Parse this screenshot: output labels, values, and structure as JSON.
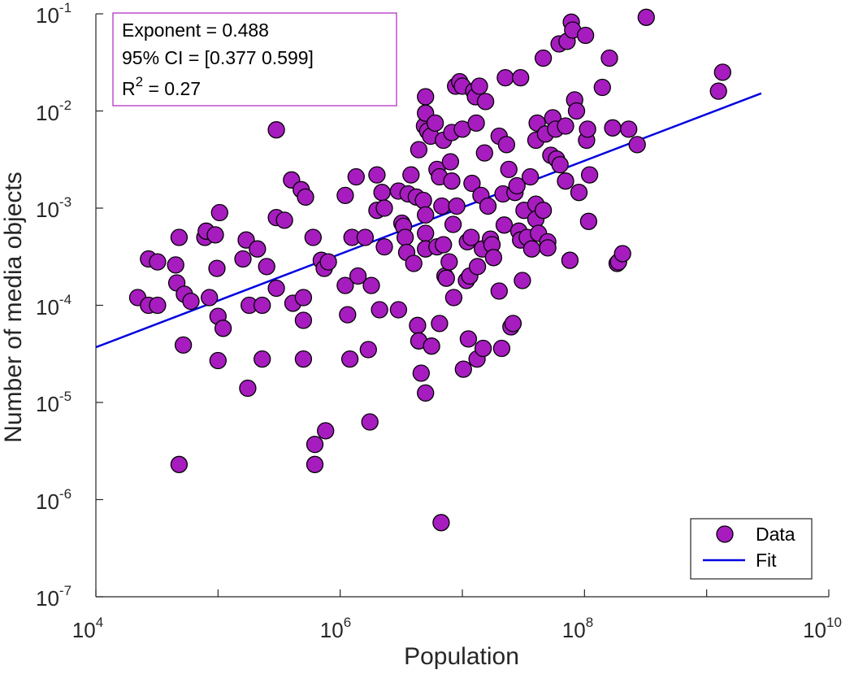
{
  "chart_data": {
    "type": "scatter",
    "xscale": "log",
    "yscale": "log",
    "xlim": [
      10000,
      10000000000
    ],
    "ylim": [
      1e-07,
      0.1
    ],
    "xlabel": "Population",
    "ylabel": "Number of media objects",
    "xticks": [
      {
        "base": "10",
        "exp": "4"
      },
      {
        "base": "10",
        "exp": "6"
      },
      {
        "base": "10",
        "exp": "8"
      },
      {
        "base": "10",
        "exp": "10"
      }
    ],
    "yticks": [
      {
        "base": "10",
        "exp": "-7"
      },
      {
        "base": "10",
        "exp": "-6"
      },
      {
        "base": "10",
        "exp": "-5"
      },
      {
        "base": "10",
        "exp": "-4"
      },
      {
        "base": "10",
        "exp": "-3"
      },
      {
        "base": "10",
        "exp": "-2"
      },
      {
        "base": "10",
        "exp": "-1"
      }
    ],
    "annotation": {
      "line1": "Exponent = 0.488",
      "line2": "95% CI = [0.377 0.599]",
      "line3_prefix": "R",
      "line3_sup": "2",
      "line3_suffix": " = 0.27"
    },
    "legend": {
      "position": "bottom-right",
      "data_label": "Data",
      "fit_label": "Fit"
    },
    "colors": {
      "marker_fill": "#A61CBF",
      "marker_edge": "#000000",
      "fit_line": "#0000E0"
    },
    "fit": {
      "exponent": 0.488,
      "x": [
        10000,
        2800000000
      ],
      "y": [
        3.7e-05,
        0.0152
      ]
    },
    "points": [
      [
        22000,
        0.00012
      ],
      [
        27000,
        0.0003
      ],
      [
        27000,
        0.0001
      ],
      [
        32000,
        0.00028
      ],
      [
        32000,
        0.0001
      ],
      [
        45000,
        0.00026
      ],
      [
        46000,
        0.00017
      ],
      [
        48000,
        0.0005
      ],
      [
        48000,
        2.3e-06
      ],
      [
        52000,
        3.9e-05
      ],
      [
        53000,
        0.00013
      ],
      [
        60000,
        0.00011
      ],
      [
        78000,
        0.0005
      ],
      [
        80000,
        0.00058
      ],
      [
        85000,
        0.00012
      ],
      [
        95000,
        0.00053
      ],
      [
        98000,
        0.00024
      ],
      [
        100000,
        7.7e-05
      ],
      [
        100000,
        2.7e-05
      ],
      [
        103000,
        0.0009
      ],
      [
        110000,
        5.8e-05
      ],
      [
        160000,
        0.0003
      ],
      [
        170000,
        0.00047
      ],
      [
        175000,
        1.4e-05
      ],
      [
        180000,
        0.0001
      ],
      [
        210000,
        0.00038
      ],
      [
        230000,
        0.0001
      ],
      [
        230000,
        2.8e-05
      ],
      [
        250000,
        0.00025
      ],
      [
        300000,
        0.0064
      ],
      [
        300000,
        0.0008
      ],
      [
        300000,
        0.00015
      ],
      [
        350000,
        0.00075
      ],
      [
        400000,
        0.00195
      ],
      [
        410000,
        0.000105
      ],
      [
        480000,
        0.00155
      ],
      [
        500000,
        0.00012
      ],
      [
        500000,
        7e-05
      ],
      [
        500000,
        2.8e-05
      ],
      [
        520000,
        0.0013
      ],
      [
        600000,
        0.0005
      ],
      [
        620000,
        3.7e-06
      ],
      [
        620000,
        2.3e-06
      ],
      [
        700000,
        0.00029
      ],
      [
        740000,
        0.00024
      ],
      [
        760000,
        5.1e-06
      ],
      [
        800000,
        0.00028
      ],
      [
        1100000,
        0.00135
      ],
      [
        1100000,
        0.00016
      ],
      [
        1150000,
        8e-05
      ],
      [
        1200000,
        2.8e-05
      ],
      [
        1250000,
        0.0005
      ],
      [
        1350000,
        0.0021
      ],
      [
        1400000,
        0.0002
      ],
      [
        1600000,
        0.0005
      ],
      [
        1700000,
        3.5e-05
      ],
      [
        1750000,
        6.3e-06
      ],
      [
        1800000,
        0.00016
      ],
      [
        2000000,
        0.0022
      ],
      [
        2000000,
        0.00095
      ],
      [
        2100000,
        9e-05
      ],
      [
        2200000,
        0.00145
      ],
      [
        2300000,
        0.001
      ],
      [
        2300000,
        0.0004
      ],
      [
        3000000,
        0.0015
      ],
      [
        3000000,
        9e-05
      ],
      [
        3200000,
        0.0007
      ],
      [
        3300000,
        0.00065
      ],
      [
        3400000,
        0.0005
      ],
      [
        3500000,
        0.00035
      ],
      [
        3600000,
        0.0014
      ],
      [
        3800000,
        0.0022
      ],
      [
        4000000,
        0.00027
      ],
      [
        4200000,
        0.0013
      ],
      [
        4300000,
        6.2e-05
      ],
      [
        4400000,
        0.004
      ],
      [
        4400000,
        4.3e-05
      ],
      [
        4600000,
        2e-05
      ],
      [
        4800000,
        0.0012
      ],
      [
        4900000,
        0.007
      ],
      [
        5000000,
        0.014
      ],
      [
        5000000,
        0.0095
      ],
      [
        5000000,
        0.00085
      ],
      [
        5000000,
        0.00055
      ],
      [
        5000000,
        0.00038
      ],
      [
        5000000,
        1.25e-05
      ],
      [
        5200000,
        0.0062
      ],
      [
        5500000,
        0.0055
      ],
      [
        5600000,
        3.8e-05
      ],
      [
        6000000,
        0.0075
      ],
      [
        6200000,
        0.0025
      ],
      [
        6200000,
        0.0004
      ],
      [
        6500000,
        0.0021
      ],
      [
        6500000,
        6.5e-05
      ],
      [
        6700000,
        5.8e-07
      ],
      [
        6800000,
        0.00105
      ],
      [
        7000000,
        0.005
      ],
      [
        7000000,
        0.00042
      ],
      [
        7200000,
        0.0002
      ],
      [
        7400000,
        0.00019
      ],
      [
        7800000,
        0.00028
      ],
      [
        8000000,
        0.003
      ],
      [
        8200000,
        0.006
      ],
      [
        8200000,
        0.0019
      ],
      [
        8400000,
        0.00068
      ],
      [
        8500000,
        0.00012
      ],
      [
        8800000,
        0.018
      ],
      [
        9000000,
        0.00105
      ],
      [
        9500000,
        0.02
      ],
      [
        10000000,
        0.018
      ],
      [
        10000000,
        0.0065
      ],
      [
        10200000,
        2.2e-05
      ],
      [
        10800000,
        0.00018
      ],
      [
        11000000,
        0.00045
      ],
      [
        11200000,
        4.5e-05
      ],
      [
        11500000,
        0.0002
      ],
      [
        11800000,
        0.0005
      ],
      [
        12000000,
        0.0018
      ],
      [
        12400000,
        0.016
      ],
      [
        12800000,
        0.014
      ],
      [
        13000000,
        0.0075
      ],
      [
        13200000,
        2.8e-05
      ],
      [
        13300000,
        0.00025
      ],
      [
        13800000,
        0.018
      ],
      [
        14200000,
        0.00135
      ],
      [
        14600000,
        0.00038
      ],
      [
        14800000,
        3.6e-05
      ],
      [
        15200000,
        0.0037
      ],
      [
        15500000,
        0.0125
      ],
      [
        16200000,
        0.00105
      ],
      [
        17000000,
        0.00048
      ],
      [
        17500000,
        0.00042
      ],
      [
        18000000,
        0.00031
      ],
      [
        20000000,
        0.0055
      ],
      [
        20000000,
        0.00014
      ],
      [
        21000000,
        3.6e-05
      ],
      [
        21500000,
        0.0014
      ],
      [
        22000000,
        0.00067
      ],
      [
        22500000,
        0.022
      ],
      [
        23000000,
        0.0045
      ],
      [
        24000000,
        0.0025
      ],
      [
        25000000,
        6e-05
      ],
      [
        26000000,
        6.5e-05
      ],
      [
        27000000,
        0.00145
      ],
      [
        28000000,
        0.0017
      ],
      [
        29000000,
        0.00058
      ],
      [
        30000000,
        0.00047
      ],
      [
        30000000,
        0.022
      ],
      [
        31000000,
        0.00018
      ],
      [
        32000000,
        0.00095
      ],
      [
        34000000,
        0.0005
      ],
      [
        36000000,
        0.0021
      ],
      [
        37000000,
        0.00038
      ],
      [
        40000000,
        0.005
      ],
      [
        40000000,
        0.0011
      ],
      [
        40000000,
        0.00077
      ],
      [
        41000000,
        0.0075
      ],
      [
        42000000,
        0.00055
      ],
      [
        46000000,
        0.035
      ],
      [
        46000000,
        0.00095
      ],
      [
        48000000,
        0.0058
      ],
      [
        50000000,
        0.00045
      ],
      [
        50000000,
        0.00039
      ],
      [
        53000000,
        0.0035
      ],
      [
        55000000,
        0.0085
      ],
      [
        58000000,
        0.0065
      ],
      [
        59000000,
        0.0032
      ],
      [
        62000000,
        0.049
      ],
      [
        63000000,
        0.0028
      ],
      [
        70000000,
        0.007
      ],
      [
        70000000,
        0.0019
      ],
      [
        72000000,
        0.052
      ],
      [
        76000000,
        0.00029
      ],
      [
        78000000,
        0.082
      ],
      [
        80000000,
        0.068
      ],
      [
        83000000,
        0.013
      ],
      [
        86000000,
        0.01
      ],
      [
        90000000,
        0.00145
      ],
      [
        102000000,
        0.06
      ],
      [
        104000000,
        0.005
      ],
      [
        106000000,
        0.0065
      ],
      [
        108000000,
        0.00073
      ],
      [
        110000000,
        0.0022
      ],
      [
        140000000,
        0.0175
      ],
      [
        160000000,
        0.035
      ],
      [
        170000000,
        0.0067
      ],
      [
        185000000,
        0.00027
      ],
      [
        190000000,
        0.00028
      ],
      [
        205000000,
        0.00034
      ],
      [
        230000000,
        0.0065
      ],
      [
        270000000,
        0.0045
      ],
      [
        320000000,
        0.092
      ],
      [
        1250000000,
        0.016
      ],
      [
        1350000000,
        0.025
      ]
    ]
  }
}
